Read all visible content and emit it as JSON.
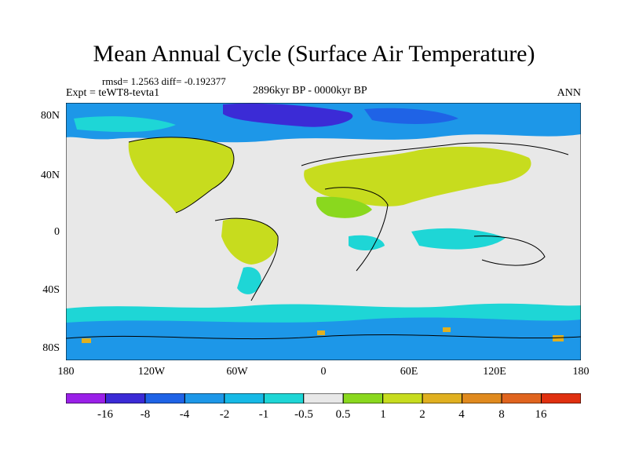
{
  "title": "Mean Annual Cycle (Surface Air Temperature)",
  "stats": "rmsd= 1.2563 diff= -0.192377",
  "experiment": "Expt = teWT8-tevta1",
  "period": "2896kyr BP - 0000kyr BP",
  "season": "ANN",
  "y_axis": {
    "ticks": [
      "80N",
      "40N",
      "0",
      "40S",
      "80S"
    ]
  },
  "x_axis": {
    "ticks": [
      "180",
      "120W",
      "60W",
      "0",
      "60E",
      "120E",
      "180"
    ]
  },
  "colorbar": {
    "labels": [
      "-16",
      "-8",
      "-4",
      "-2",
      "-1",
      "-0.5",
      "0.5",
      "1",
      "2",
      "4",
      "8",
      "16"
    ],
    "colors": [
      "#9a20e8",
      "#3b2bd6",
      "#1f63e6",
      "#1d97e8",
      "#16b9e6",
      "#1ed6d6",
      "#e8e8e8",
      "#8ad81e",
      "#c7dc1e",
      "#e0b020",
      "#e08a1e",
      "#e0641e",
      "#e03010"
    ]
  },
  "colors": {
    "land_positive": "#b8d436",
    "background_anomaly": "#e8e8e8",
    "ocean_cool": "#21c4e0",
    "polar_cold": "#2a5ee0"
  }
}
